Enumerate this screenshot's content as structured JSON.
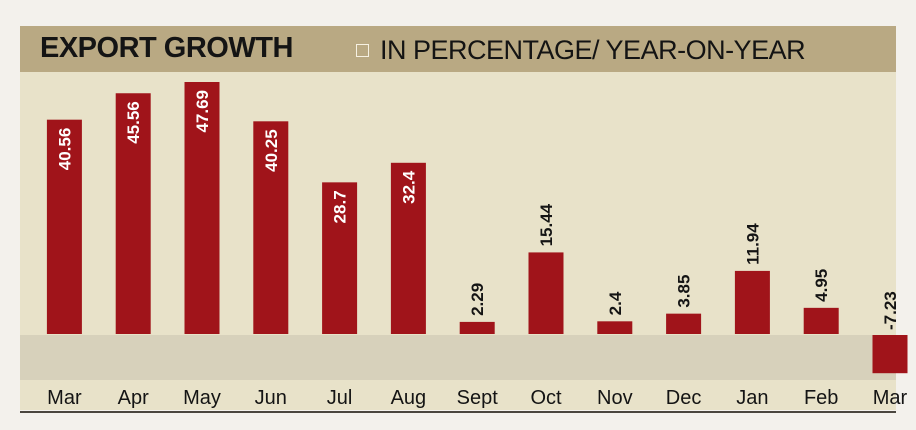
{
  "header": {
    "title": "EXPORT GROWTH",
    "subtitle": "IN PERCENTAGE/ YEAR-ON-YEAR"
  },
  "colors": {
    "bar": "#a0141a",
    "header_bg": "#b9a983",
    "plot_bg": "#e8e2c9",
    "below_zero_bg": "#d7d1bb"
  },
  "chart_data": {
    "type": "bar",
    "title": "EXPORT GROWTH",
    "subtitle": "IN PERCENTAGE/ YEAR-ON-YEAR",
    "categories": [
      "Mar",
      "Apr",
      "May",
      "Jun",
      "Jul",
      "Aug",
      "Sept",
      "Oct",
      "Nov",
      "Dec",
      "Jan",
      "Feb",
      "Mar"
    ],
    "values": [
      40.56,
      45.56,
      47.69,
      40.25,
      28.7,
      32.4,
      2.29,
      15.44,
      2.4,
      3.85,
      11.94,
      4.95,
      -7.23
    ],
    "labels": [
      "40.56",
      "45.56",
      "47.69",
      "40.25",
      "28.7",
      "32.4",
      "2.29",
      "15.44",
      "2.4",
      "3.85",
      "11.94",
      "4.95",
      "-7.23"
    ],
    "ylim": [
      -8,
      48
    ],
    "grid": false,
    "legend": false
  }
}
